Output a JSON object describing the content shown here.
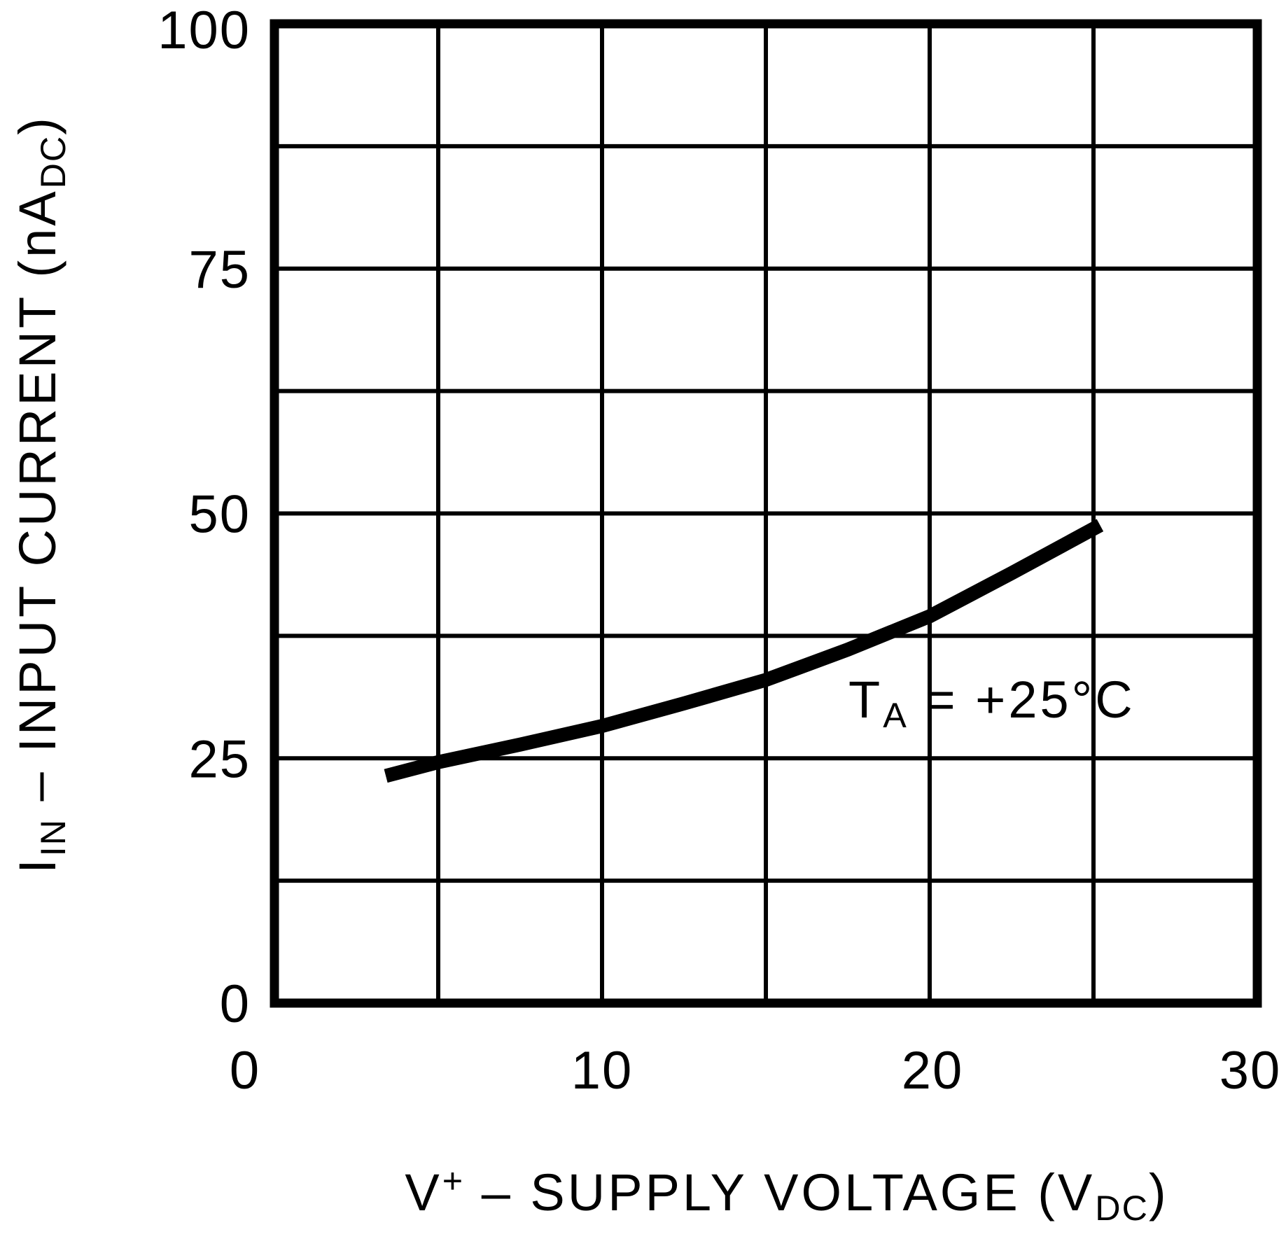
{
  "colors": {
    "foreground": "#000000",
    "background": "#ffffff"
  },
  "chart_data": {
    "type": "line",
    "title": "",
    "xlabel": "V+ – SUPPLY VOLTAGE (VDC)",
    "ylabel": "IIN – INPUT CURRENT (nADC)",
    "xlabel_segments": [
      {
        "text": "V"
      },
      {
        "text": "+",
        "style": "sup"
      },
      {
        "text": " – SUPPLY VOLTAGE (V"
      },
      {
        "text": "DC",
        "style": "sub"
      },
      {
        "text": ")"
      }
    ],
    "ylabel_segments": [
      {
        "text": "I"
      },
      {
        "text": "IN",
        "style": "sub"
      },
      {
        "text": " – INPUT CURRENT (nA"
      },
      {
        "text": "DC",
        "style": "sub"
      },
      {
        "text": ")"
      }
    ],
    "xlim": [
      0,
      30
    ],
    "ylim": [
      0,
      100
    ],
    "x_gridline_step": 5,
    "y_gridline_step": 12.5,
    "grid": true,
    "legend": "none",
    "xticks": [
      {
        "value": 0,
        "label": "0"
      },
      {
        "value": 10,
        "label": "10"
      },
      {
        "value": 20,
        "label": "20"
      },
      {
        "value": 30,
        "label": "30"
      }
    ],
    "yticks": [
      {
        "value": 0,
        "label": "0"
      },
      {
        "value": 25,
        "label": "25"
      },
      {
        "value": 50,
        "label": "50"
      },
      {
        "value": 75,
        "label": "75"
      },
      {
        "value": 100,
        "label": "100"
      }
    ],
    "annotation": {
      "text": "TA = +25°C",
      "segments": [
        {
          "text": "T"
        },
        {
          "text": "A",
          "style": "sub"
        },
        {
          "text": " = +25°C"
        }
      ]
    },
    "series": [
      {
        "name": "input current at TA = +25°C",
        "points": [
          [
            3.4,
            23.2
          ],
          [
            5.0,
            24.6
          ],
          [
            7.5,
            26.4
          ],
          [
            10.0,
            28.3
          ],
          [
            12.5,
            30.6
          ],
          [
            15.0,
            33.0
          ],
          [
            17.5,
            36.1
          ],
          [
            20.0,
            39.5
          ],
          [
            22.5,
            43.9
          ],
          [
            25.2,
            48.8
          ]
        ]
      }
    ]
  }
}
